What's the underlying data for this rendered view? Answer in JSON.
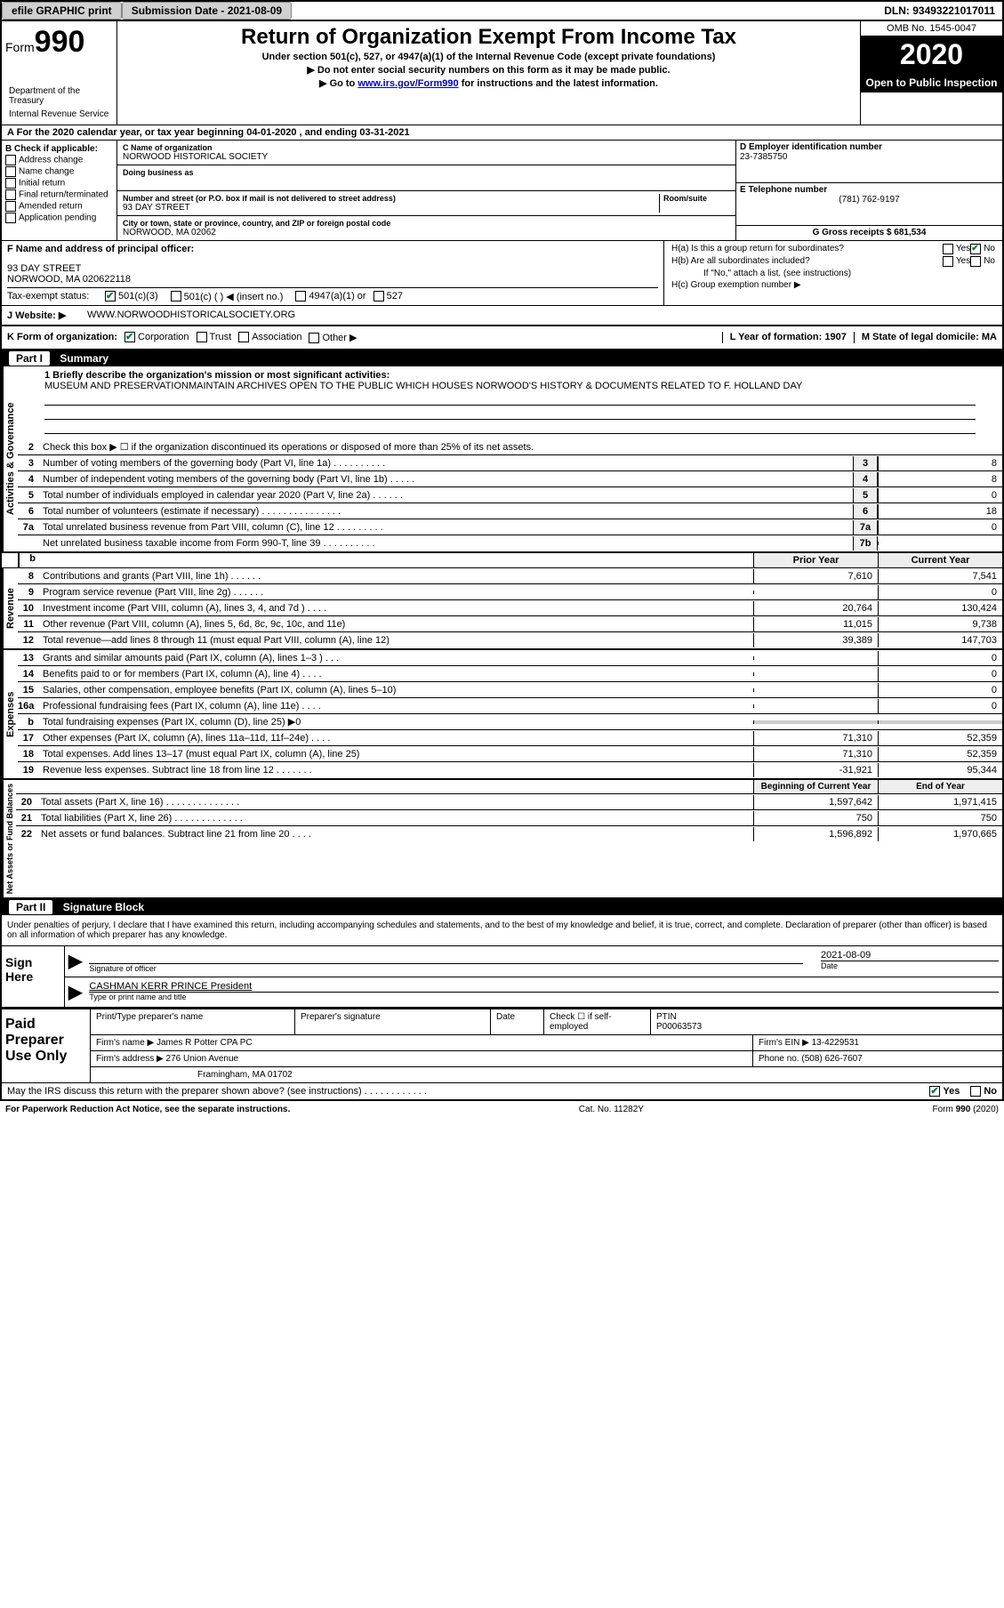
{
  "topbar": {
    "efile": "efile GRAPHIC print",
    "submission_label": "Submission Date - 2021-08-09",
    "dln": "DLN: 93493221017011"
  },
  "header": {
    "form_word": "Form",
    "form_num": "990",
    "title": "Return of Organization Exempt From Income Tax",
    "subtitle1": "Under section 501(c), 527, or 4947(a)(1) of the Internal Revenue Code (except private foundations)",
    "subtitle2": "▶ Do not enter social security numbers on this form as it may be made public.",
    "subtitle3_pre": "▶ Go to ",
    "subtitle3_link": "www.irs.gov/Form990",
    "subtitle3_post": " for instructions and the latest information.",
    "omb": "OMB No. 1545-0047",
    "year": "2020",
    "open": "Open to Public Inspection",
    "dept1": "Department of the Treasury",
    "dept2": "Internal Revenue Service"
  },
  "line_a": "For the 2020 calendar year, or tax year beginning 04-01-2020    , and ending 03-31-2021",
  "col_b": {
    "header": "B Check if applicable:",
    "items": [
      "Address change",
      "Name change",
      "Initial return",
      "Final return/terminated",
      "Amended return",
      "Application pending"
    ]
  },
  "col_c": {
    "name_label": "C Name of organization",
    "name_val": "NORWOOD HISTORICAL SOCIETY",
    "dba_label": "Doing business as",
    "street_label": "Number and street (or P.O. box if mail is not delivered to street address)",
    "room_label": "Room/suite",
    "street_val": "93 DAY STREET",
    "city_label": "City or town, state or province, country, and ZIP or foreign postal code",
    "city_val": "NORWOOD, MA  02062"
  },
  "col_d": {
    "ein_label": "D Employer identification number",
    "ein_val": "23-7385750",
    "phone_label": "E Telephone number",
    "phone_val": "(781) 762-9197",
    "gross_label": "G Gross receipts $ 681,534"
  },
  "row_f": {
    "label": "F  Name and address of principal officer:",
    "val1": "93 DAY STREET",
    "val2": "NORWOOD, MA  020622118"
  },
  "row_h": {
    "ha": "H(a)  Is this a group return for subordinates?",
    "hb": "H(b)  Are all subordinates included?",
    "hb_note": "If \"No,\" attach a list. (see instructions)",
    "hc": "H(c)  Group exemption number ▶",
    "yes": "Yes",
    "no": "No"
  },
  "row_i": {
    "label": "Tax-exempt status:",
    "opts": [
      "501(c)(3)",
      "501(c) (  ) ◀ (insert no.)",
      "4947(a)(1) or",
      "527"
    ]
  },
  "row_j": {
    "label": "J   Website: ▶",
    "val": "WWW.NORWOODHISTORICALSOCIETY.ORG"
  },
  "row_k": {
    "label": "K Form of organization:",
    "opts": [
      "Corporation",
      "Trust",
      "Association",
      "Other ▶"
    ]
  },
  "row_l": {
    "label": "L Year of formation: 1907"
  },
  "row_m": {
    "label": "M State of legal domicile: MA"
  },
  "part1": {
    "header": "Part I",
    "title": "Summary",
    "q1_label": "1  Briefly describe the organization's mission or most significant activities:",
    "q1_val": "MUSEUM AND PRESERVATIONMAINTAIN ARCHIVES OPEN TO THE PUBLIC WHICH HOUSES NORWOOD'S HISTORY & DOCUMENTS RELATED TO F. HOLLAND DAY",
    "q2": "Check this box ▶ ☐  if the organization discontinued its operations or disposed of more than 25% of its net assets."
  },
  "activities_label": "Activities & Governance",
  "revenue_label": "Revenue",
  "expenses_label": "Expenses",
  "netassets_label": "Net Assets or Fund Balances",
  "gov_lines": [
    {
      "n": "3",
      "text": "Number of voting members of the governing body (Part VI, line 1a)   .   .   .   .   .   .   .   .   .   .",
      "box": "3",
      "val": "8"
    },
    {
      "n": "4",
      "text": "Number of independent voting members of the governing body (Part VI, line 1b)   .   .   .   .   .",
      "box": "4",
      "val": "8"
    },
    {
      "n": "5",
      "text": "Total number of individuals employed in calendar year 2020 (Part V, line 2a)   .   .   .   .   .   .",
      "box": "5",
      "val": "0"
    },
    {
      "n": "6",
      "text": "Total number of volunteers (estimate if necessary)   .   .   .   .   .   .   .   .   .   .   .   .   .   .   .",
      "box": "6",
      "val": "18"
    },
    {
      "n": "7a",
      "text": "Total unrelated business revenue from Part VIII, column (C), line 12   .   .   .   .   .   .   .   .   .",
      "box": "7a",
      "val": "0"
    },
    {
      "n": "",
      "text": "Net unrelated business taxable income from Form 990-T, line 39   .   .   .   .   .   .   .   .   .   .",
      "box": "7b",
      "val": ""
    }
  ],
  "yr_headers": {
    "prior": "Prior Year",
    "current": "Current Year"
  },
  "rev_lines": [
    {
      "n": "8",
      "text": "Contributions and grants (Part VIII, line 1h)   .   .   .   .   .   .",
      "py": "7,610",
      "cy": "7,541"
    },
    {
      "n": "9",
      "text": "Program service revenue (Part VIII, line 2g)   .   .   .   .   .   .",
      "py": "",
      "cy": "0"
    },
    {
      "n": "10",
      "text": "Investment income (Part VIII, column (A), lines 3, 4, and 7d )   .   .   .   .",
      "py": "20,764",
      "cy": "130,424"
    },
    {
      "n": "11",
      "text": "Other revenue (Part VIII, column (A), lines 5, 6d, 8c, 9c, 10c, and 11e)",
      "py": "11,015",
      "cy": "9,738"
    },
    {
      "n": "12",
      "text": "Total revenue—add lines 8 through 11 (must equal Part VIII, column (A), line 12)",
      "py": "39,389",
      "cy": "147,703"
    }
  ],
  "exp_lines": [
    {
      "n": "13",
      "text": "Grants and similar amounts paid (Part IX, column (A), lines 1–3 )   .   .   .",
      "py": "",
      "cy": "0"
    },
    {
      "n": "14",
      "text": "Benefits paid to or for members (Part IX, column (A), line 4)   .   .   .   .",
      "py": "",
      "cy": "0"
    },
    {
      "n": "15",
      "text": "Salaries, other compensation, employee benefits (Part IX, column (A), lines 5–10)",
      "py": "",
      "cy": "0"
    },
    {
      "n": "16a",
      "text": "Professional fundraising fees (Part IX, column (A), line 11e)   .   .   .   .",
      "py": "",
      "cy": "0"
    },
    {
      "n": "b",
      "text": "Total fundraising expenses (Part IX, column (D), line 25) ▶0",
      "py": "shaded",
      "cy": "shaded"
    },
    {
      "n": "17",
      "text": "Other expenses (Part IX, column (A), lines 11a–11d, 11f–24e)   .   .   .   .",
      "py": "71,310",
      "cy": "52,359"
    },
    {
      "n": "18",
      "text": "Total expenses. Add lines 13–17 (must equal Part IX, column (A), line 25)",
      "py": "71,310",
      "cy": "52,359"
    },
    {
      "n": "19",
      "text": "Revenue less expenses. Subtract line 18 from line 12   .   .   .   .   .   .   .",
      "py": "-31,921",
      "cy": "95,344"
    }
  ],
  "na_headers": {
    "begin": "Beginning of Current Year",
    "end": "End of Year"
  },
  "na_lines": [
    {
      "n": "20",
      "text": "Total assets (Part X, line 16)   .   .   .   .   .   .   .   .   .   .   .   .   .   .",
      "py": "1,597,642",
      "cy": "1,971,415"
    },
    {
      "n": "21",
      "text": "Total liabilities (Part X, line 26)   .   .   .   .   .   .   .   .   .   .   .   .   .",
      "py": "750",
      "cy": "750"
    },
    {
      "n": "22",
      "text": "Net assets or fund balances. Subtract line 21 from line 20   .   .   .   .",
      "py": "1,596,892",
      "cy": "1,970,665"
    }
  ],
  "part2": {
    "header": "Part II",
    "title": "Signature Block",
    "perjury": "Under penalties of perjury, I declare that I have examined this return, including accompanying schedules and statements, and to the best of my knowledge and belief, it is true, correct, and complete. Declaration of preparer (other than officer) is based on all information of which preparer has any knowledge."
  },
  "sign": {
    "label": "Sign Here",
    "sig_officer": "Signature of officer",
    "date_label": "Date",
    "date_val": "2021-08-09",
    "name_val": "CASHMAN KERR PRINCE  President",
    "name_label": "Type or print name and title"
  },
  "paid": {
    "label": "Paid Preparer Use Only",
    "col1": "Print/Type preparer's name",
    "col2": "Preparer's signature",
    "col3": "Date",
    "col4": "Check ☐ if self-employed",
    "col5_label": "PTIN",
    "col5_val": "P00063573",
    "firm_name_label": "Firm's name      ▶",
    "firm_name_val": "James R Potter CPA PC",
    "firm_ein_label": "Firm's EIN ▶",
    "firm_ein_val": "13-4229531",
    "firm_addr_label": "Firm's address ▶",
    "firm_addr_val1": "276 Union Avenue",
    "firm_addr_val2": "Framingham, MA  01702",
    "phone_label": "Phone no.",
    "phone_val": "(508) 626-7607"
  },
  "discuss": {
    "text": "May the IRS discuss this return with the preparer shown above? (see instructions)   .   .   .   .   .   .   .   .   .   .   .   .",
    "yes": "Yes",
    "no": "No"
  },
  "footer": {
    "left": "For Paperwork Reduction Act Notice, see the separate instructions.",
    "mid": "Cat. No. 11282Y",
    "right": "Form 990 (2020)"
  },
  "b_label": "b"
}
